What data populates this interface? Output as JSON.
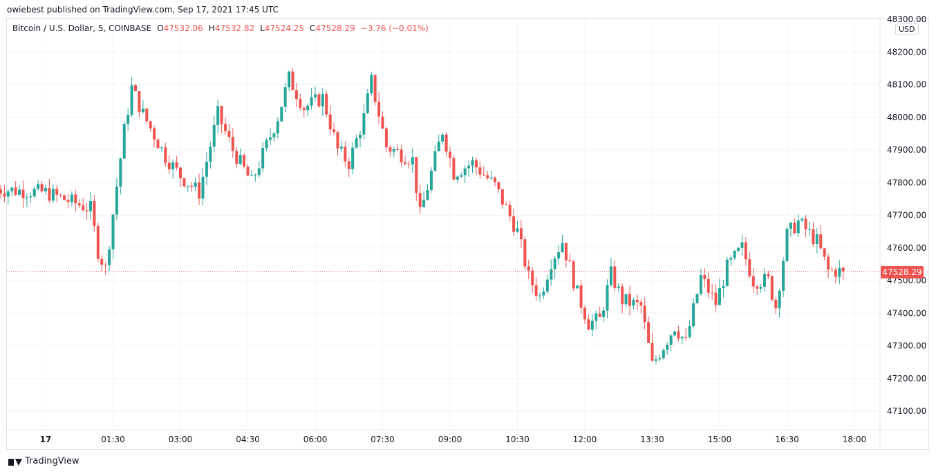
{
  "header": {
    "published_text": "owiebest published on TradingView.com, Sep 17, 2021 17:45 UTC"
  },
  "legend": {
    "symbol": "Bitcoin / U.S. Dollar, 5, COINBASE",
    "o_label": "O",
    "o_value": "47532.06",
    "h_label": "H",
    "h_value": "47532.82",
    "l_label": "L",
    "l_value": "47524.25",
    "c_label": "C",
    "c_value": "47528.29",
    "change": "−3.76 (−0.01%)"
  },
  "price_axis": {
    "unit": "USD",
    "labels": [
      "48300.00",
      "48200.00",
      "48100.00",
      "48000.00",
      "47900.00",
      "47800.00",
      "47700.00",
      "47600.00",
      "47500.00",
      "47400.00",
      "47300.00",
      "47200.00",
      "47100.00"
    ]
  },
  "current_price": {
    "label": "47528.29",
    "color": "#ef5350"
  },
  "time_axis": {
    "labels": [
      "17",
      "01:30",
      "03:00",
      "04:30",
      "06:00",
      "07:30",
      "09:00",
      "10:30",
      "12:00",
      "13:30",
      "15:00",
      "16:30",
      "18:00"
    ]
  },
  "brand": {
    "name": "TradingView",
    "icon": "tradingview-logo-icon"
  },
  "colors": {
    "up": "#26a69a",
    "down": "#ef5350",
    "grid": "#f0f3fa",
    "text": "#131722"
  },
  "chart_data": {
    "type": "candlestick",
    "interval_minutes": 5,
    "start_time": "Sep 17, 2021 00:00",
    "ylim": [
      47050,
      48300
    ],
    "xlim": [
      "00:00",
      "19:00"
    ],
    "grid": true,
    "last_price": 47528.29,
    "series": [
      {
        "name": "Bitcoin / U.S. Dollar",
        "ohlc": []
      }
    ],
    "keypoints": [
      {
        "t": "00:00",
        "p": 47770
      },
      {
        "t": "01:00",
        "p": 47720
      },
      {
        "t": "01:10",
        "p": 47590
      },
      {
        "t": "01:20",
        "p": 47535
      },
      {
        "t": "01:45",
        "p": 47960
      },
      {
        "t": "01:55",
        "p": 48090
      },
      {
        "t": "02:10",
        "p": 48010
      },
      {
        "t": "02:40",
        "p": 47880
      },
      {
        "t": "03:00",
        "p": 47820
      },
      {
        "t": "03:25",
        "p": 47770
      },
      {
        "t": "03:50",
        "p": 48010
      },
      {
        "t": "04:10",
        "p": 47900
      },
      {
        "t": "04:35",
        "p": 47800
      },
      {
        "t": "05:10",
        "p": 48000
      },
      {
        "t": "05:25",
        "p": 48120
      },
      {
        "t": "05:45",
        "p": 48030
      },
      {
        "t": "06:10",
        "p": 48060
      },
      {
        "t": "06:30",
        "p": 47900
      },
      {
        "t": "06:45",
        "p": 47860
      },
      {
        "t": "07:05",
        "p": 48000
      },
      {
        "t": "07:15",
        "p": 48110
      },
      {
        "t": "07:35",
        "p": 47910
      },
      {
        "t": "08:10",
        "p": 47870
      },
      {
        "t": "08:20",
        "p": 47700
      },
      {
        "t": "08:50",
        "p": 47960
      },
      {
        "t": "09:05",
        "p": 47830
      },
      {
        "t": "09:30",
        "p": 47860
      },
      {
        "t": "10:00",
        "p": 47790
      },
      {
        "t": "10:30",
        "p": 47650
      },
      {
        "t": "10:45",
        "p": 47510
      },
      {
        "t": "11:00",
        "p": 47450
      },
      {
        "t": "11:15",
        "p": 47560
      },
      {
        "t": "11:30",
        "p": 47620
      },
      {
        "t": "11:50",
        "p": 47460
      },
      {
        "t": "12:05",
        "p": 47370
      },
      {
        "t": "12:20",
        "p": 47380
      },
      {
        "t": "12:35",
        "p": 47520
      },
      {
        "t": "12:50",
        "p": 47440
      },
      {
        "t": "13:15",
        "p": 47420
      },
      {
        "t": "13:30",
        "p": 47240
      },
      {
        "t": "14:00",
        "p": 47360
      },
      {
        "t": "14:15",
        "p": 47310
      },
      {
        "t": "14:35",
        "p": 47510
      },
      {
        "t": "14:55",
        "p": 47430
      },
      {
        "t": "15:10",
        "p": 47540
      },
      {
        "t": "15:30",
        "p": 47600
      },
      {
        "t": "15:45",
        "p": 47500
      },
      {
        "t": "16:05",
        "p": 47500
      },
      {
        "t": "16:15",
        "p": 47420
      },
      {
        "t": "16:30",
        "p": 47640
      },
      {
        "t": "16:45",
        "p": 47680
      },
      {
        "t": "17:10",
        "p": 47620
      },
      {
        "t": "17:25",
        "p": 47530
      },
      {
        "t": "17:45",
        "p": 47528
      }
    ]
  }
}
